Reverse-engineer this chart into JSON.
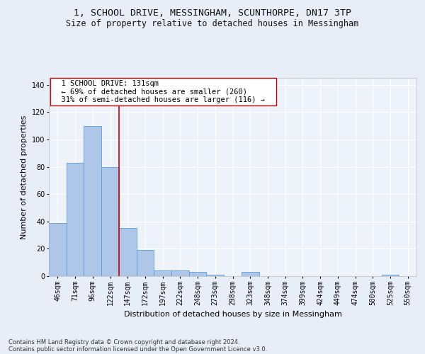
{
  "title_line1": "1, SCHOOL DRIVE, MESSINGHAM, SCUNTHORPE, DN17 3TP",
  "title_line2": "Size of property relative to detached houses in Messingham",
  "xlabel": "Distribution of detached houses by size in Messingham",
  "ylabel": "Number of detached properties",
  "footer_line1": "Contains HM Land Registry data © Crown copyright and database right 2024.",
  "footer_line2": "Contains public sector information licensed under the Open Government Licence v3.0.",
  "categories": [
    "46sqm",
    "71sqm",
    "96sqm",
    "122sqm",
    "147sqm",
    "172sqm",
    "197sqm",
    "222sqm",
    "248sqm",
    "273sqm",
    "298sqm",
    "323sqm",
    "348sqm",
    "374sqm",
    "399sqm",
    "424sqm",
    "449sqm",
    "474sqm",
    "500sqm",
    "525sqm",
    "550sqm"
  ],
  "values": [
    39,
    83,
    110,
    80,
    35,
    19,
    4,
    4,
    3,
    1,
    0,
    3,
    0,
    0,
    0,
    0,
    0,
    0,
    0,
    1,
    0
  ],
  "bar_color": "#aec6e8",
  "bar_edge_color": "#5b9bd5",
  "vline_x": 3.5,
  "vline_color": "#cc0000",
  "annotation_line1": "  1 SCHOOL DRIVE: 131sqm  ",
  "annotation_line2": "  ← 69% of detached houses are smaller (260)  ",
  "annotation_line3": "  31% of semi-detached houses are larger (116) →  ",
  "annotation_box_color": "#ffffff",
  "annotation_box_edge_color": "#cc0000",
  "ylim": [
    0,
    145
  ],
  "yticks": [
    0,
    20,
    40,
    60,
    80,
    100,
    120,
    140
  ],
  "bg_color": "#e8eef8",
  "plot_bg_color": "#eef2fa",
  "grid_color": "#ffffff",
  "title_fontsize": 9.5,
  "subtitle_fontsize": 8.5,
  "axis_label_fontsize": 8,
  "tick_fontsize": 7,
  "annotation_fontsize": 7.5,
  "footer_fontsize": 6
}
